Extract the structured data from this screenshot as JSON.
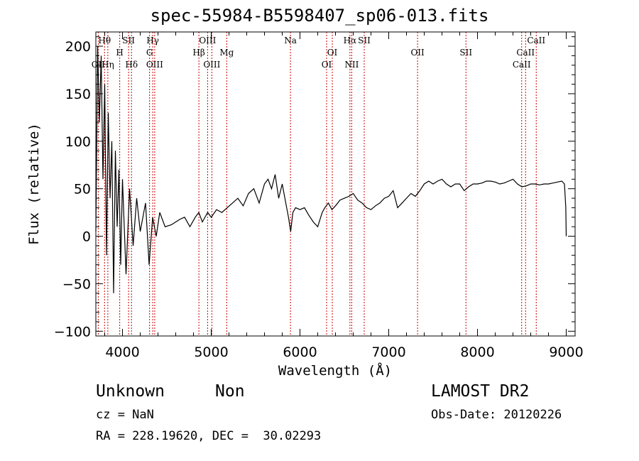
{
  "header": {
    "title": "spec-55984-B5598407_sp06-013.fits"
  },
  "info": {
    "class": "Unknown",
    "subclass": "Non",
    "cz": "cz = NaN",
    "coords": "RA = 228.19620, DEC =  30.02293",
    "survey": "LAMOST DR2",
    "obs_date": "Obs-Date: 20120226"
  },
  "colors": {
    "spectrum": "#000000",
    "line_markers": "#cc0000",
    "axes": "#000000"
  },
  "chart_data": {
    "type": "line",
    "xlabel": "Wavelength (Å)",
    "ylabel": "Flux (relative)",
    "xlim": [
      3700,
      9100
    ],
    "ylim": [
      -105,
      215
    ],
    "xticks": [
      4000,
      5000,
      6000,
      7000,
      8000,
      9000
    ],
    "yticks": [
      -100,
      -50,
      0,
      50,
      100,
      150,
      200
    ],
    "grid": false,
    "series": [
      {
        "x": [
          3700,
          3720,
          3740,
          3760,
          3780,
          3800,
          3820,
          3840,
          3860,
          3880,
          3900,
          3920,
          3940,
          3960,
          3980,
          4000,
          4040,
          4080,
          4120,
          4160,
          4200,
          4260,
          4300,
          4340,
          4380,
          4420,
          4480,
          4550,
          4600,
          4650,
          4700,
          4760,
          4820,
          4860,
          4900,
          4960,
          5000,
          5060,
          5120,
          5180,
          5240,
          5300,
          5360,
          5420,
          5480,
          5540,
          5600,
          5640,
          5680,
          5720,
          5760,
          5800,
          5840,
          5870,
          5895,
          5920,
          5950,
          6000,
          6050,
          6100,
          6150,
          6200,
          6250,
          6280,
          6320,
          6360,
          6400,
          6450,
          6500,
          6550,
          6600,
          6650,
          6700,
          6750,
          6800,
          6850,
          6900,
          6950,
          7000,
          7050,
          7100,
          7150,
          7200,
          7250,
          7300,
          7350,
          7400,
          7450,
          7500,
          7550,
          7600,
          7650,
          7700,
          7750,
          7800,
          7850,
          7900,
          7950,
          8000,
          8050,
          8100,
          8150,
          8200,
          8250,
          8300,
          8350,
          8400,
          8450,
          8500,
          8550,
          8600,
          8650,
          8700,
          8750,
          8800,
          8850,
          8900,
          8950,
          8980,
          8995,
          9000
        ],
        "values": [
          5,
          200,
          120,
          190,
          60,
          160,
          -20,
          130,
          40,
          100,
          -60,
          90,
          10,
          70,
          -30,
          60,
          -40,
          50,
          -10,
          40,
          5,
          35,
          -30,
          20,
          0,
          25,
          10,
          12,
          15,
          18,
          20,
          10,
          20,
          25,
          15,
          25,
          20,
          28,
          25,
          30,
          35,
          40,
          32,
          45,
          50,
          35,
          55,
          60,
          50,
          65,
          40,
          55,
          35,
          20,
          5,
          25,
          30,
          28,
          30,
          22,
          15,
          10,
          25,
          30,
          35,
          28,
          32,
          38,
          40,
          42,
          45,
          38,
          35,
          30,
          28,
          32,
          35,
          40,
          42,
          48,
          30,
          35,
          40,
          45,
          42,
          48,
          55,
          58,
          55,
          58,
          60,
          55,
          52,
          55,
          55,
          48,
          52,
          55,
          55,
          56,
          58,
          58,
          57,
          55,
          56,
          58,
          60,
          55,
          52,
          53,
          55,
          55,
          54,
          55,
          55,
          56,
          57,
          58,
          55,
          30,
          0
        ]
      }
    ],
    "spectral_lines": [
      {
        "label": "OII",
        "x": 3727,
        "row": 3
      },
      {
        "label": "Hθ",
        "x": 3798,
        "row": 1
      },
      {
        "label": "Hη",
        "x": 3835,
        "row": 3
      },
      {
        "label": "SII",
        "x": 4069,
        "row": 1
      },
      {
        "label": "H",
        "x": 3969,
        "row": 2
      },
      {
        "label": "Hδ",
        "x": 4102,
        "row": 3
      },
      {
        "label": "Hγ",
        "x": 4341,
        "row": 1
      },
      {
        "label": "G",
        "x": 4305,
        "row": 2
      },
      {
        "label": "OIII",
        "x": 4363,
        "row": 3
      },
      {
        "label": "OIII",
        "x": 4959,
        "row": 1
      },
      {
        "label": "Hβ",
        "x": 4861,
        "row": 2
      },
      {
        "label": "OIII",
        "x": 5007,
        "row": 3
      },
      {
        "label": "Mg",
        "x": 5175,
        "row": 2
      },
      {
        "label": "Na",
        "x": 5893,
        "row": 1
      },
      {
        "label": "OI",
        "x": 6364,
        "row": 2
      },
      {
        "label": "OI",
        "x": 6300,
        "row": 3
      },
      {
        "label": "Hα",
        "x": 6563,
        "row": 1
      },
      {
        "label": "SII",
        "x": 6724,
        "row": 1
      },
      {
        "label": "NII",
        "x": 6583,
        "row": 3
      },
      {
        "label": "OII",
        "x": 7325,
        "row": 2
      },
      {
        "label": "SII",
        "x": 7870,
        "row": 2
      },
      {
        "label": "CaII",
        "x": 8662,
        "row": 1
      },
      {
        "label": "CaII",
        "x": 8542,
        "row": 2
      },
      {
        "label": "CaII",
        "x": 8498,
        "row": 3
      }
    ]
  }
}
